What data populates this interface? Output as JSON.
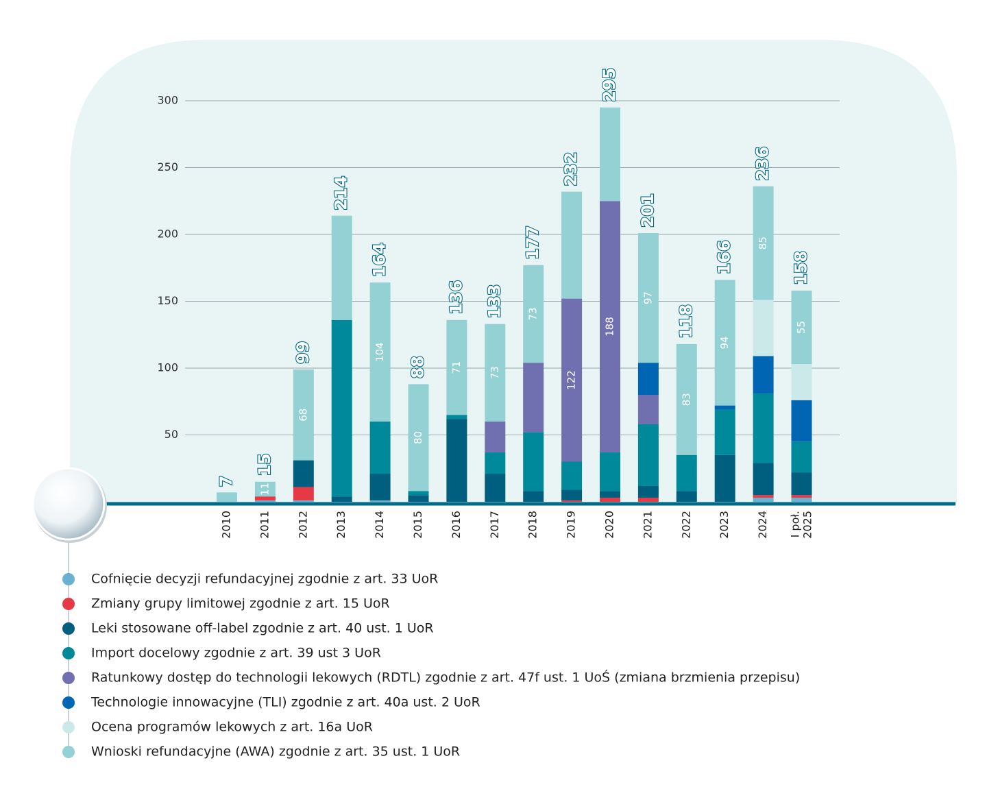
{
  "chart_data": {
    "type": "stacked-bar",
    "categories": [
      "2010",
      "2011",
      "2012",
      "2013",
      "2014",
      "2015",
      "2016",
      "2017",
      "2018",
      "2019",
      "2020",
      "2021",
      "2022",
      "2023",
      "2024",
      "I poł. 2025"
    ],
    "totals": [
      7,
      15,
      99,
      214,
      164,
      88,
      136,
      133,
      177,
      232,
      295,
      201,
      118,
      166,
      236,
      158
    ],
    "ylim": [
      0,
      300
    ],
    "yticks": [
      50,
      100,
      150,
      200,
      250,
      300
    ],
    "grid": true,
    "series": [
      {
        "name": "Cofnięcie decyzji refundacyjnej zgodnie z  art. 33 UoR",
        "color": "#6ab0d0",
        "values": [
          0,
          1,
          1,
          0,
          1,
          0,
          0,
          0,
          0,
          0,
          0,
          0,
          0,
          0,
          3,
          3
        ]
      },
      {
        "name": "Zmiany grupy limitowej zgodnie z art. 15 UoR",
        "color": "#e63946",
        "values": [
          0,
          3,
          10,
          0,
          0,
          0,
          0,
          0,
          0,
          1,
          3,
          3,
          0,
          0,
          2,
          2
        ]
      },
      {
        "name": "Leki stosowane off-label zgodnie z art. 40 ust. 1 UoR",
        "color": "#005f7f",
        "values": [
          0,
          0,
          20,
          4,
          20,
          5,
          62,
          21,
          8,
          8,
          5,
          9,
          8,
          35,
          24,
          17
        ]
      },
      {
        "name": "Import docelowy zgodnie z art. 39 ust 3 UoR",
        "color": "#00899a",
        "values": [
          0,
          0,
          0,
          132,
          39,
          3,
          3,
          16,
          44,
          21,
          29,
          46,
          27,
          34,
          52,
          23
        ]
      },
      {
        "name": "Ratunkowy dostęp do technologii lekowych (RDTL) zgodnie z art. 47f ust. 1 UoŚ (zmiana brzmienia przepisu)",
        "color": "#7070b0",
        "values": [
          0,
          0,
          0,
          0,
          0,
          0,
          0,
          23,
          52,
          122,
          188,
          22,
          0,
          0,
          0,
          0
        ],
        "value_labels": [
          null,
          null,
          null,
          null,
          null,
          null,
          null,
          null,
          null,
          "122",
          "188",
          null,
          null,
          null,
          null,
          null
        ]
      },
      {
        "name": "Technologie innowacyjne (TLI) zgodnie  z art. 40a ust. 2 UoR",
        "color": "#0066b3",
        "values": [
          0,
          0,
          0,
          0,
          0,
          0,
          0,
          0,
          0,
          0,
          0,
          24,
          0,
          3,
          28,
          31
        ]
      },
      {
        "name": "Ocena programów lekowych z art. 16a UoR",
        "color": "#cce9ea",
        "values": [
          0,
          0,
          0,
          0,
          0,
          0,
          0,
          0,
          0,
          0,
          0,
          0,
          0,
          0,
          42,
          27
        ]
      },
      {
        "name": "Wnioski refundacyjne (AWA) zgodnie z art. 35 ust. 1 UoR",
        "color": "#93d1d4",
        "values": [
          7,
          11,
          68,
          78,
          104,
          80,
          71,
          73,
          73,
          80,
          70,
          97,
          83,
          94,
          85,
          55
        ],
        "value_labels": [
          null,
          "11",
          "68",
          null,
          "104",
          "80",
          "71",
          "73",
          "73",
          null,
          null,
          "97",
          "83",
          "94",
          "85",
          "55"
        ]
      }
    ],
    "series_labels_extra": null
  }
}
